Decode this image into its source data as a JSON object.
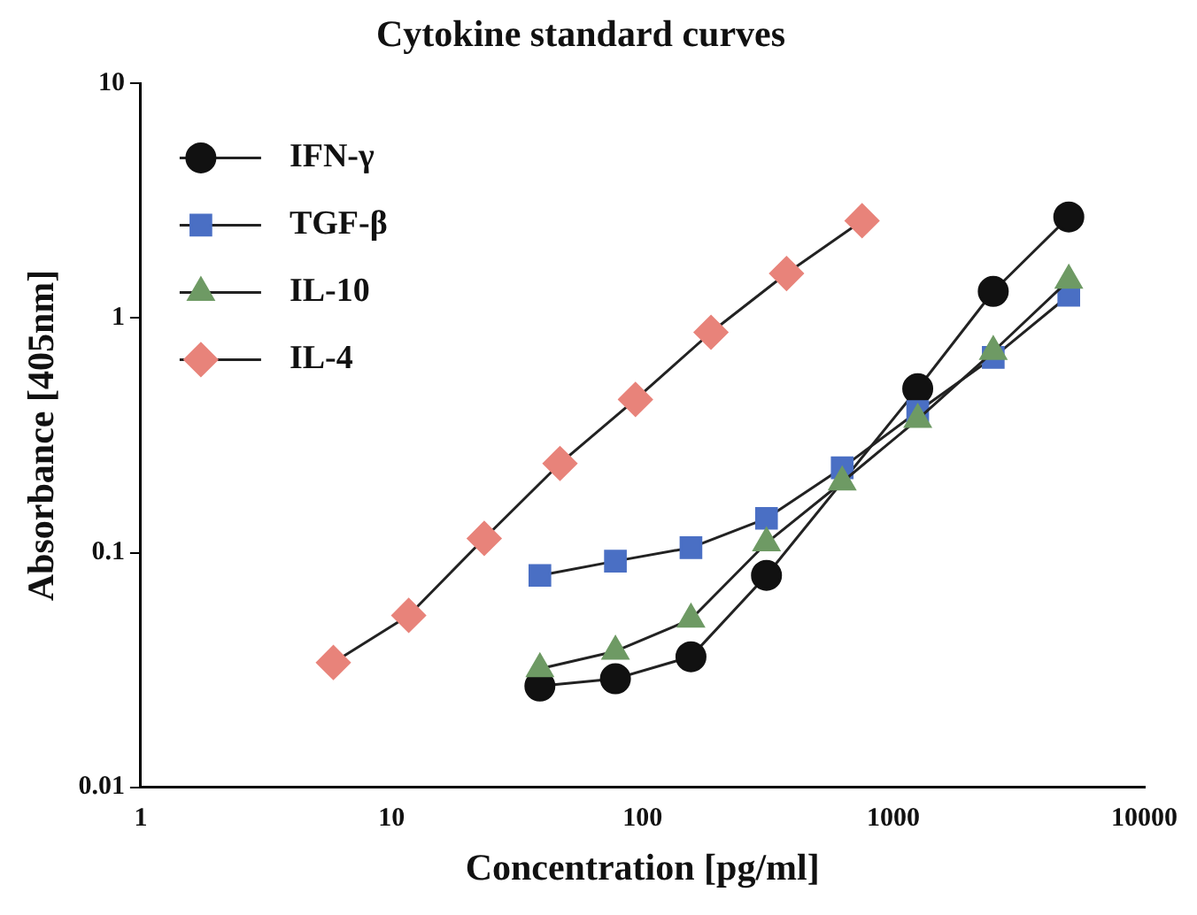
{
  "chart_data": {
    "type": "line",
    "title": "Cytokine standard curves",
    "xlabel": "Concentration [pg/ml]",
    "ylabel": "Absorbance [405nm]",
    "log": "xy",
    "xlim": [
      1,
      10000
    ],
    "xticks": [
      1,
      10,
      100,
      1000,
      10000
    ],
    "ylim": [
      0.01,
      10
    ],
    "yticks": [
      0.01,
      0.1,
      1,
      10
    ],
    "grid": false,
    "legend": "top left",
    "series": [
      {
        "name": "IFN-γ",
        "color": "#111111",
        "marker": "circle",
        "x": [
          39,
          78,
          156,
          312,
          625,
          1250,
          2500,
          5000
        ],
        "values": [
          0.027,
          0.029,
          0.036,
          0.08,
          null,
          0.5,
          1.3,
          2.7
        ]
      },
      {
        "name": "TGF-β",
        "color": "#4a6fc4",
        "marker": "square",
        "x": [
          39,
          78,
          156,
          312,
          625,
          1250,
          2500,
          5000
        ],
        "values": [
          0.08,
          0.092,
          0.105,
          0.14,
          0.23,
          0.4,
          0.68,
          1.25
        ]
      },
      {
        "name": "IL-10",
        "color": "#6e9a64",
        "marker": "triangle",
        "x": [
          39,
          78,
          156,
          312,
          625,
          1250,
          2500,
          5000
        ],
        "values": [
          0.032,
          0.038,
          0.052,
          0.11,
          0.2,
          0.37,
          0.72,
          1.45
        ]
      },
      {
        "name": "IL-4",
        "color": "#e8837a",
        "marker": "diamond",
        "x": [
          5.86,
          11.7,
          23.4,
          46.9,
          93.75,
          187.5,
          375,
          750
        ],
        "values": [
          0.034,
          0.054,
          0.115,
          0.24,
          0.45,
          0.87,
          1.55,
          2.6
        ]
      }
    ]
  }
}
